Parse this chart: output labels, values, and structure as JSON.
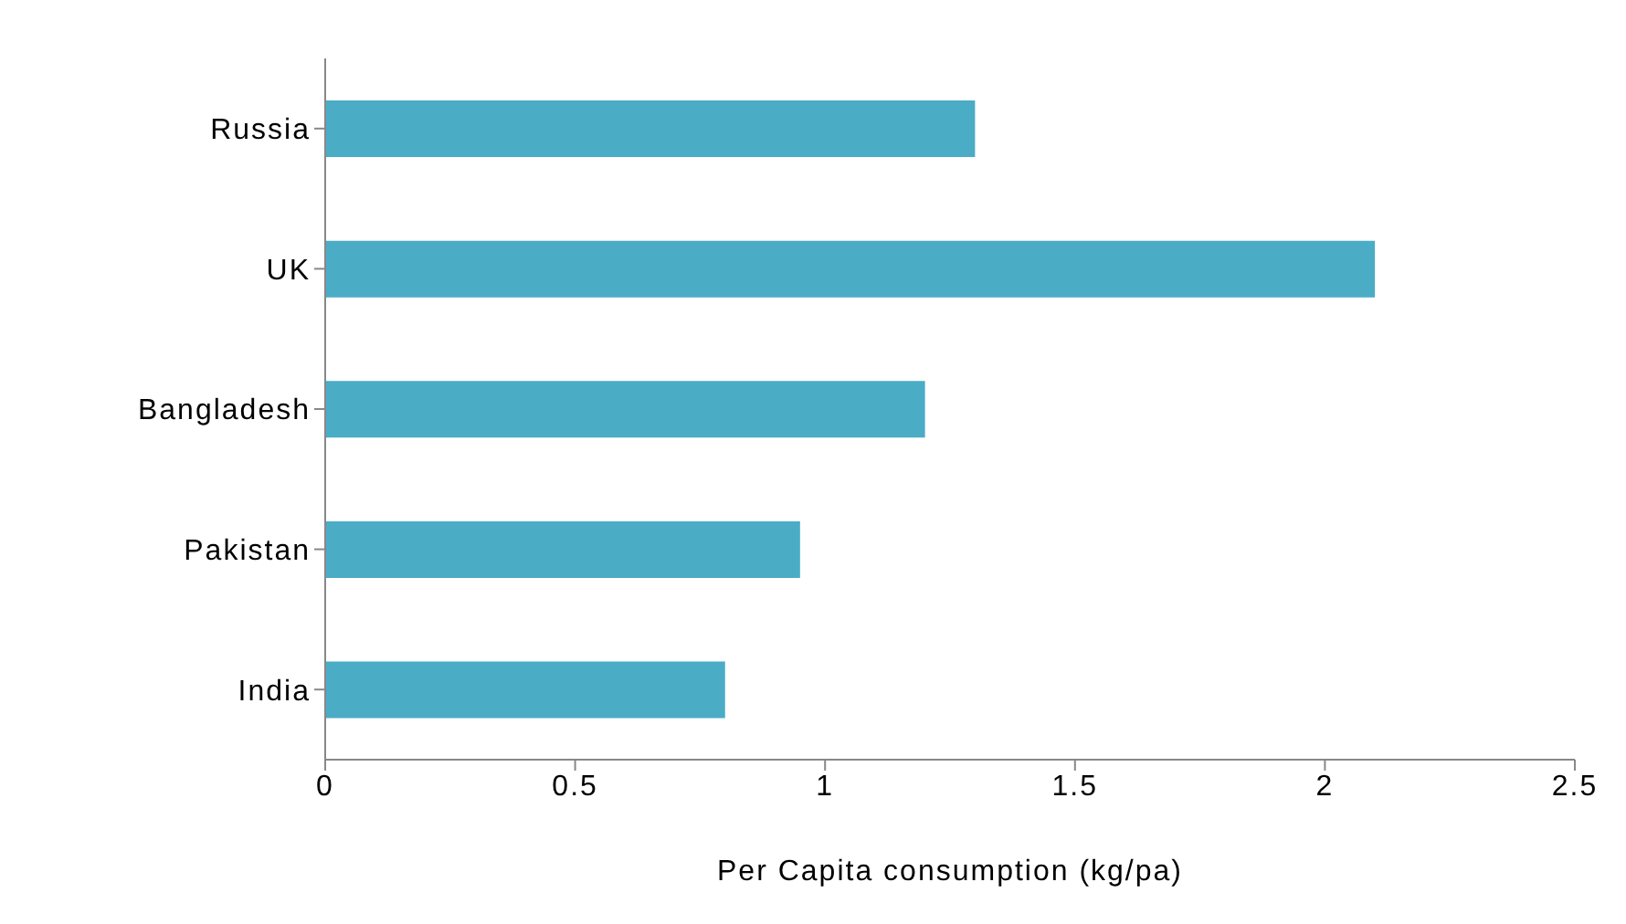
{
  "chart_data": {
    "type": "bar",
    "orientation": "horizontal",
    "xlabel": "Per Capita consumption (kg/pa)",
    "categories": [
      "Russia",
      "UK",
      "Bangladesh",
      "Pakistan",
      "India"
    ],
    "values": [
      1.3,
      2.1,
      1.2,
      0.95,
      0.8
    ],
    "color": "#4bacc6",
    "xlim": [
      0,
      2.5
    ],
    "xticks": [
      0,
      0.5,
      1,
      1.5,
      2,
      2.5
    ],
    "grid": false,
    "legend": false
  }
}
